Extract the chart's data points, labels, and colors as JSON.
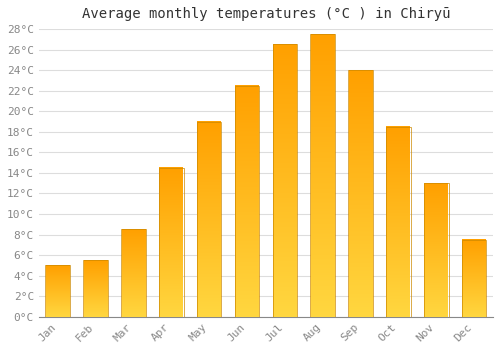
{
  "title": "Average monthly temperatures (°C ) in Chiryū",
  "months": [
    "Jan",
    "Feb",
    "Mar",
    "Apr",
    "May",
    "Jun",
    "Jul",
    "Aug",
    "Sep",
    "Oct",
    "Nov",
    "Dec"
  ],
  "temperatures": [
    5.0,
    5.5,
    8.5,
    14.5,
    19.0,
    22.5,
    26.5,
    27.5,
    24.0,
    18.5,
    13.0,
    7.5
  ],
  "bar_color_bottom": "#FFD740",
  "bar_color_top": "#FFA000",
  "bar_edge_color": "#CC8800",
  "background_color": "#FFFFFF",
  "grid_color": "#DDDDDD",
  "ylim": [
    0,
    28
  ],
  "ytick_step": 2,
  "title_fontsize": 10,
  "tick_fontsize": 8,
  "font_family": "monospace",
  "bar_width": 0.65
}
